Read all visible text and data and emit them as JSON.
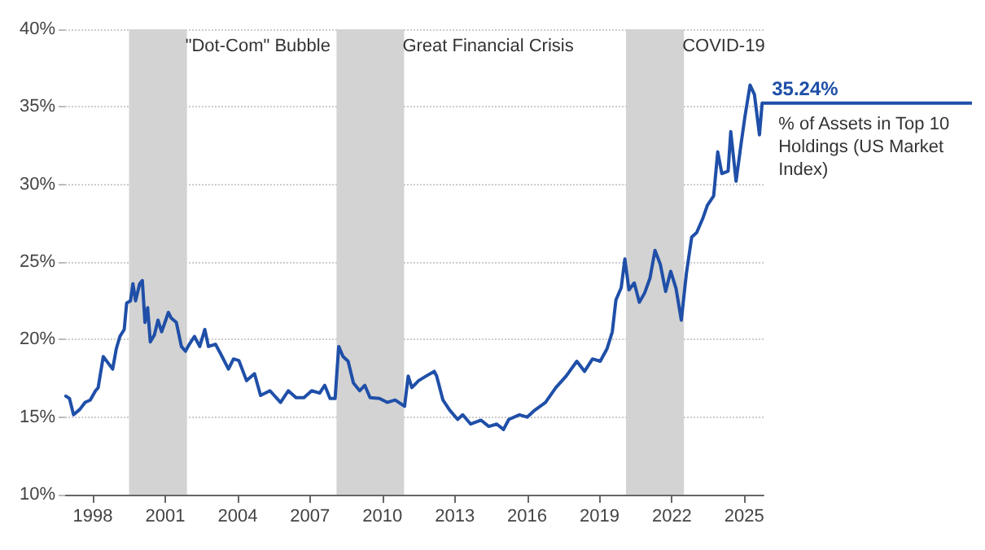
{
  "chart_data": {
    "type": "line",
    "legend": false,
    "grid": "y",
    "marker": "none",
    "line_style": "solid",
    "xlim": [
      1996.85,
      2025.8
    ],
    "xticks": [
      1998,
      2001,
      2004,
      2007,
      2010,
      2013,
      2016,
      2019,
      2022,
      2025
    ],
    "ylim": [
      10,
      40
    ],
    "yticks": [
      {
        "value": 10,
        "label": "10%"
      },
      {
        "value": 15,
        "label": "15%"
      },
      {
        "value": 20,
        "label": "20%"
      },
      {
        "value": 25,
        "label": "25%"
      },
      {
        "value": 30,
        "label": "30%"
      },
      {
        "value": 35,
        "label": "35%"
      },
      {
        "value": 40,
        "label": "40%"
      }
    ],
    "bands": [
      {
        "axis": "x",
        "from": 1999.5,
        "to": 2001.9,
        "label": "\"Dot-Com\" Bubble",
        "color": "#d3d3d3"
      },
      {
        "axis": "x",
        "from": 2008.1,
        "to": 2010.9,
        "label": "Great Financial Crisis",
        "color": "#d3d3d3"
      },
      {
        "axis": "x",
        "from": 2020.1,
        "to": 2022.5,
        "label": "COVID‑19",
        "color": "#d3d3d3"
      }
    ],
    "series": [
      {
        "name": "% of Assets in Top 10 Holdings (US Market Index)",
        "color": "#1f4fa8",
        "x": [
          1996.88,
          1997.03,
          1997.2,
          1997.46,
          1997.68,
          1997.89,
          1998.11,
          1998.22,
          1998.43,
          1998.65,
          1998.82,
          1998.97,
          1999.12,
          1999.3,
          1999.4,
          1999.56,
          1999.66,
          1999.77,
          1999.94,
          2000.05,
          2000.16,
          2000.27,
          2000.38,
          2000.55,
          2000.7,
          2000.85,
          2001.02,
          2001.13,
          2001.24,
          2001.46,
          2001.67,
          2001.84,
          2002.0,
          2002.21,
          2002.43,
          2002.64,
          2002.79,
          2003.08,
          2003.29,
          2003.62,
          2003.83,
          2004.05,
          2004.37,
          2004.7,
          2004.95,
          2005.34,
          2005.78,
          2006.1,
          2006.42,
          2006.75,
          2007.07,
          2007.4,
          2007.61,
          2007.83,
          2008.04,
          2008.19,
          2008.37,
          2008.58,
          2008.8,
          2009.06,
          2009.27,
          2009.49,
          2009.88,
          2010.2,
          2010.53,
          2010.92,
          2011.07,
          2011.22,
          2011.5,
          2011.82,
          2012.15,
          2012.25,
          2012.51,
          2012.79,
          2013.12,
          2013.33,
          2013.66,
          2014.09,
          2014.41,
          2014.74,
          2015.02,
          2015.24,
          2015.68,
          2016.0,
          2016.32,
          2016.76,
          2017.19,
          2017.62,
          2018.06,
          2018.38,
          2018.71,
          2019.03,
          2019.31,
          2019.53,
          2019.68,
          2019.9,
          2020.05,
          2020.22,
          2020.44,
          2020.65,
          2020.87,
          2021.09,
          2021.3,
          2021.52,
          2021.74,
          2021.95,
          2022.17,
          2022.39,
          2022.6,
          2022.82,
          2023.03,
          2023.29,
          2023.47,
          2023.73,
          2023.9,
          2024.07,
          2024.33,
          2024.44,
          2024.66,
          2024.87,
          2025.03,
          2025.24,
          2025.42,
          2025.63,
          2025.74
        ],
        "values": [
          16.35,
          16.2,
          15.15,
          15.5,
          15.95,
          16.1,
          16.7,
          16.9,
          18.9,
          18.45,
          18.1,
          19.4,
          20.2,
          20.65,
          22.35,
          22.5,
          23.6,
          22.5,
          23.6,
          23.8,
          21.1,
          22.05,
          19.85,
          20.3,
          21.25,
          20.5,
          21.25,
          21.75,
          21.4,
          21.1,
          19.55,
          19.25,
          19.7,
          20.2,
          19.55,
          20.65,
          19.55,
          19.7,
          19.1,
          18.1,
          18.75,
          18.65,
          17.35,
          17.8,
          16.4,
          16.7,
          15.95,
          16.7,
          16.25,
          16.25,
          16.7,
          16.55,
          17.05,
          16.2,
          16.2,
          19.55,
          18.9,
          18.6,
          17.2,
          16.7,
          17.05,
          16.25,
          16.2,
          15.95,
          16.1,
          15.7,
          17.65,
          16.9,
          17.35,
          17.65,
          17.95,
          17.65,
          16.1,
          15.45,
          14.85,
          15.15,
          14.55,
          14.8,
          14.4,
          14.55,
          14.2,
          14.85,
          15.15,
          15.0,
          15.45,
          15.95,
          16.9,
          17.65,
          18.6,
          17.95,
          18.75,
          18.6,
          19.4,
          20.5,
          22.55,
          23.35,
          25.2,
          23.2,
          23.65,
          22.4,
          23.0,
          23.95,
          25.75,
          24.85,
          23.1,
          24.4,
          23.3,
          21.25,
          24.25,
          26.6,
          26.9,
          27.85,
          28.65,
          29.25,
          32.1,
          30.7,
          30.85,
          33.4,
          30.2,
          32.65,
          34.4,
          36.4,
          35.8,
          33.2,
          35.24
        ],
        "value_labels": [
          null,
          null,
          null,
          null,
          null,
          null,
          null,
          null,
          null,
          null,
          null,
          null,
          null,
          null,
          null,
          null,
          null,
          null,
          null,
          null,
          null,
          null,
          null,
          null,
          null,
          null,
          null,
          null,
          null,
          null,
          null,
          null,
          null,
          null,
          null,
          null,
          null,
          null,
          null,
          null,
          null,
          null,
          null,
          null,
          null,
          null,
          null,
          null,
          null,
          null,
          null,
          null,
          null,
          null,
          null,
          null,
          null,
          null,
          null,
          null,
          null,
          null,
          null,
          null,
          null,
          null,
          null,
          null,
          null,
          null,
          null,
          null,
          null,
          null,
          null,
          null,
          null,
          null,
          null,
          null,
          null,
          null,
          null,
          null,
          null,
          null,
          null,
          null,
          null,
          null,
          null,
          null,
          null,
          null,
          null,
          null,
          null,
          null,
          null,
          null,
          null,
          null,
          null,
          null,
          null,
          null,
          null,
          null,
          null,
          null,
          null,
          null,
          null,
          null,
          null,
          null,
          null,
          null,
          null,
          null,
          null,
          null,
          null,
          null,
          "35.24%"
        ]
      }
    ]
  }
}
